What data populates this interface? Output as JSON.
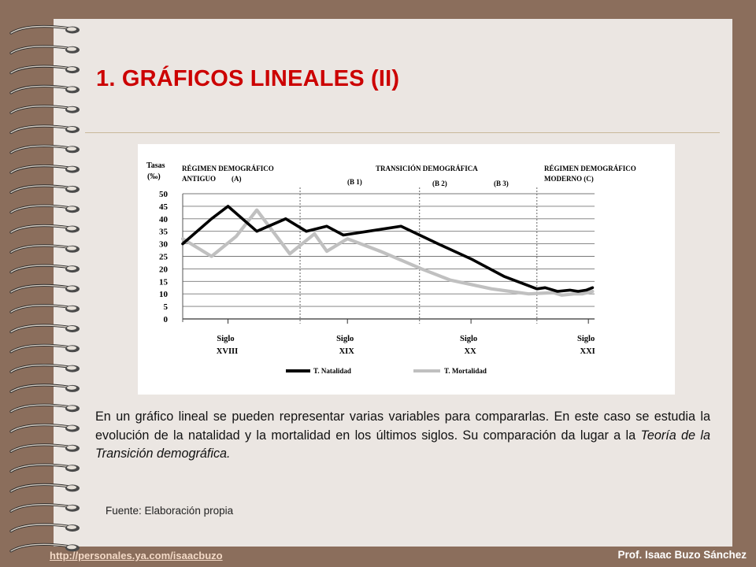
{
  "slide": {
    "title": "1. GRÁFICOS LINEALES (II)",
    "body_part1": "En un gráfico lineal se pueden representar varias variables para compararlas. En este caso se estudia la evolución de la natalidad y la mortalidad en los últimos siglos. Su comparación da lugar a la ",
    "body_italic": "Teoría de la Transición demográfica.",
    "source": "Fuente: Elaboración propia",
    "footer_link": "http://personales.ya.com/isaacbuzo",
    "footer_author": "Prof. Isaac Buzo Sánchez"
  },
  "chart_data": {
    "type": "line",
    "ylabel_line1": "Tasas",
    "ylabel_line2": "(‰)",
    "ylim": [
      0,
      50
    ],
    "yticks": [
      "0",
      "5",
      "10",
      "15",
      "20",
      "25",
      "30",
      "35",
      "40",
      "45",
      "50"
    ],
    "grid": true,
    "xlim": [
      0,
      100
    ],
    "x_ticks": [
      {
        "line1": "Siglo",
        "line2": "XVIII",
        "x": 11
      },
      {
        "line1": "Siglo",
        "line2": "XIX",
        "x": 40
      },
      {
        "line1": "Siglo",
        "line2": "XX",
        "x": 70
      },
      {
        "line1": "Siglo",
        "line2": "XXI",
        "x": 98.5
      }
    ],
    "phase_dividers": [
      28.5,
      57.5,
      86
    ],
    "phases": [
      {
        "line1": "RÉGIMEN DEMOGRÁFICO",
        "line2": "ANTIGUO",
        "code": "(A)"
      },
      {
        "line1": "TRANSICIÓN DEMOGRÁFICA",
        "subphases": [
          "(B 1)",
          "(B 2)",
          "(B 3)"
        ]
      },
      {
        "line1": "RÉGIMEN DEMOGRÁFICO",
        "line2": "MODERNO (C)"
      }
    ],
    "series": [
      {
        "name": "T. Natalidad",
        "color": "#000000",
        "points": [
          [
            0,
            30
          ],
          [
            7,
            40
          ],
          [
            11,
            45
          ],
          [
            18,
            35
          ],
          [
            25,
            40
          ],
          [
            30,
            35
          ],
          [
            35,
            37
          ],
          [
            39,
            33.5
          ],
          [
            45,
            35
          ],
          [
            53,
            37
          ],
          [
            62,
            30
          ],
          [
            70,
            24
          ],
          [
            78,
            17
          ],
          [
            86,
            12
          ],
          [
            88,
            12.5
          ],
          [
            91,
            11
          ],
          [
            94,
            11.5
          ],
          [
            96,
            11
          ],
          [
            98,
            11.5
          ],
          [
            99.5,
            12.5
          ]
        ]
      },
      {
        "name": "T. Mortalidad",
        "color": "#c0c0c0",
        "points": [
          [
            0,
            32
          ],
          [
            7,
            25
          ],
          [
            13,
            33
          ],
          [
            18,
            43.5
          ],
          [
            26,
            26
          ],
          [
            32,
            34
          ],
          [
            35,
            27
          ],
          [
            40,
            32
          ],
          [
            48,
            27
          ],
          [
            58,
            20
          ],
          [
            65,
            15.5
          ],
          [
            75,
            12
          ],
          [
            84,
            10
          ],
          [
            90,
            10.5
          ],
          [
            92,
            9.5
          ],
          [
            95,
            10
          ],
          [
            97,
            10
          ],
          [
            99.5,
            11
          ]
        ]
      }
    ]
  }
}
